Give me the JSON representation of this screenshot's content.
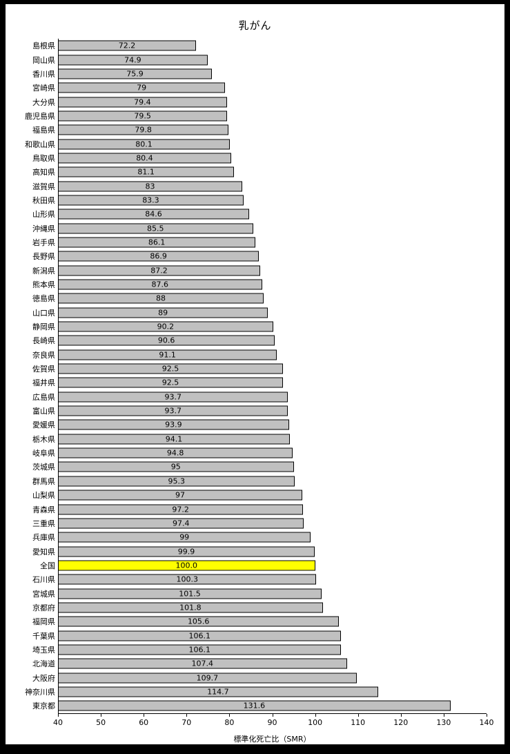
{
  "title": "乳がん",
  "chart_data": {
    "type": "bar",
    "orientation": "horizontal",
    "title": "乳がん",
    "xlabel": "標準化死亡比（SMR）",
    "xlim": [
      40,
      140
    ],
    "xticks": [
      40,
      50,
      60,
      70,
      80,
      90,
      100,
      110,
      120,
      130,
      140
    ],
    "grid": false,
    "legend": "none",
    "bar_color": "#c0c0c0",
    "bar_border_color": "#000000",
    "highlight_category": "全国",
    "highlight_color": "#ffff00",
    "categories": [
      "島根県",
      "岡山県",
      "香川県",
      "宮崎県",
      "大分県",
      "鹿児島県",
      "福島県",
      "和歌山県",
      "鳥取県",
      "高知県",
      "滋賀県",
      "秋田県",
      "山形県",
      "沖縄県",
      "岩手県",
      "長野県",
      "新潟県",
      "熊本県",
      "徳島県",
      "山口県",
      "静岡県",
      "長崎県",
      "奈良県",
      "佐賀県",
      "福井県",
      "広島県",
      "富山県",
      "愛媛県",
      "栃木県",
      "岐阜県",
      "茨城県",
      "群馬県",
      "山梨県",
      "青森県",
      "三重県",
      "兵庫県",
      "愛知県",
      "全国",
      "石川県",
      "宮城県",
      "京都府",
      "福岡県",
      "千葉県",
      "埼玉県",
      "北海道",
      "大阪府",
      "神奈川県",
      "東京都"
    ],
    "values": [
      72.2,
      74.9,
      75.9,
      79,
      79.4,
      79.5,
      79.8,
      80.1,
      80.4,
      81.1,
      83,
      83.3,
      84.6,
      85.5,
      86.1,
      86.9,
      87.2,
      87.6,
      88,
      89,
      90.2,
      90.6,
      91.1,
      92.5,
      92.5,
      93.7,
      93.7,
      93.9,
      94.1,
      94.8,
      95,
      95.3,
      97,
      97.2,
      97.4,
      99,
      99.9,
      100.0,
      100.3,
      101.5,
      101.8,
      105.6,
      106.1,
      106.1,
      107.4,
      109.7,
      114.7,
      131.6
    ],
    "value_labels": [
      "72.2",
      "74.9",
      "75.9",
      "79",
      "79.4",
      "79.5",
      "79.8",
      "80.1",
      "80.4",
      "81.1",
      "83",
      "83.3",
      "84.6",
      "85.5",
      "86.1",
      "86.9",
      "87.2",
      "87.6",
      "88",
      "89",
      "90.2",
      "90.6",
      "91.1",
      "92.5",
      "92.5",
      "93.7",
      "93.7",
      "93.9",
      "94.1",
      "94.8",
      "95",
      "95.3",
      "97",
      "97.2",
      "97.4",
      "99",
      "99.9",
      "100.0",
      "100.3",
      "101.5",
      "101.8",
      "105.6",
      "106.1",
      "106.1",
      "107.4",
      "109.7",
      "114.7",
      "131.6"
    ]
  }
}
